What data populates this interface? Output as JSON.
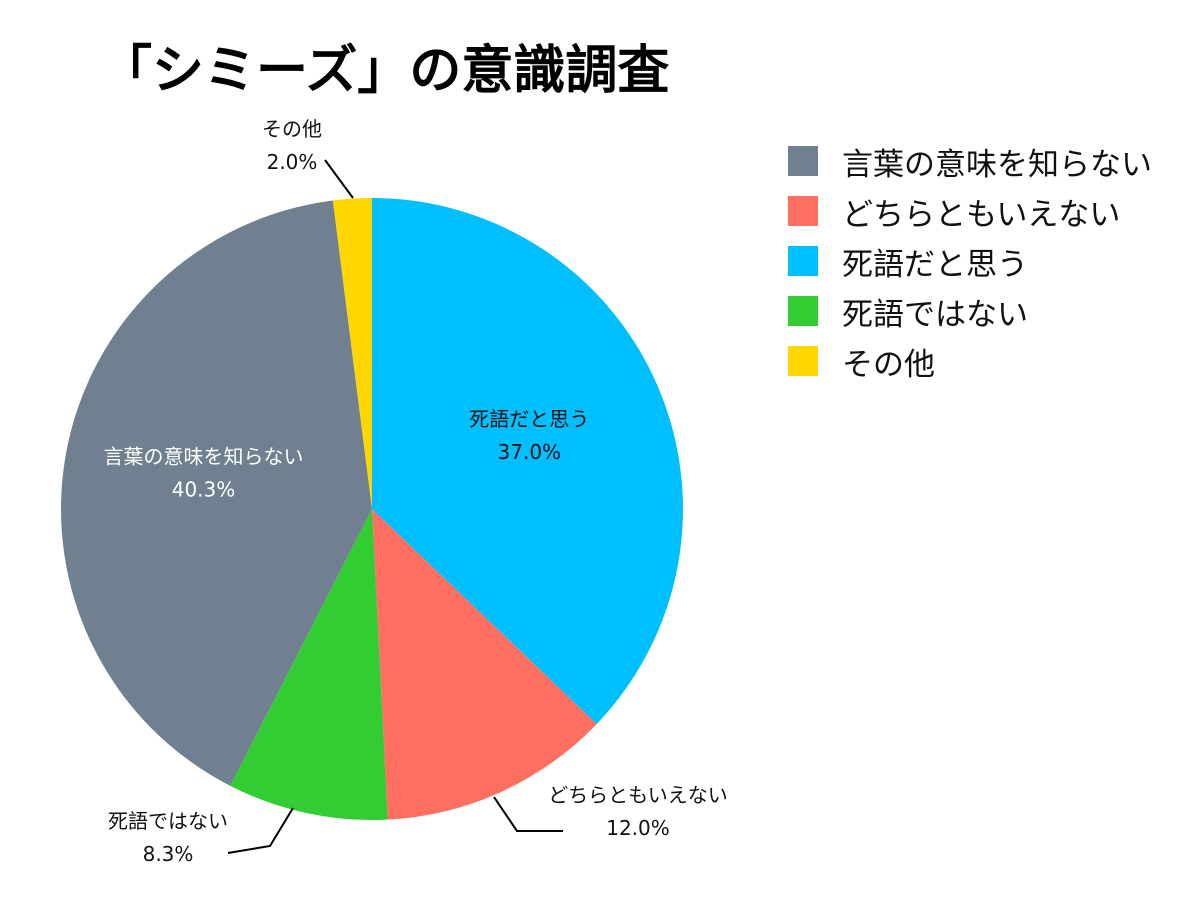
{
  "chart_data": {
    "type": "pie",
    "title": "「シミーズ」の意識調査",
    "start_angle_deg": 0,
    "direction": "clockwise",
    "legend_position": "right",
    "slices": [
      {
        "label": "死語だと思う",
        "value": 37.0,
        "value_label": "37.0%",
        "color": "#00BFFF",
        "label_position": "inside"
      },
      {
        "label": "どちらともいえない",
        "value": 12.0,
        "value_label": "12.0%",
        "color": "#FF6F61",
        "label_position": "outside"
      },
      {
        "label": "死語ではない",
        "value": 8.3,
        "value_label": "8.3%",
        "color": "#32CD32",
        "label_position": "outside"
      },
      {
        "label": "言葉の意味を知らない",
        "value": 40.3,
        "value_label": "40.3%",
        "color": "#708090",
        "label_position": "inside"
      },
      {
        "label": "その他",
        "value": 2.0,
        "value_label": "2.0%",
        "color": "#FFD700",
        "label_position": "outside"
      }
    ],
    "legend": [
      {
        "label": "言葉の意味を知らない",
        "color": "#708090"
      },
      {
        "label": "どちらともいえない",
        "color": "#FF6F61"
      },
      {
        "label": "死語だと思う",
        "color": "#00BFFF"
      },
      {
        "label": "死語ではない",
        "color": "#32CD32"
      },
      {
        "label": "その他",
        "color": "#FFD700"
      }
    ]
  }
}
